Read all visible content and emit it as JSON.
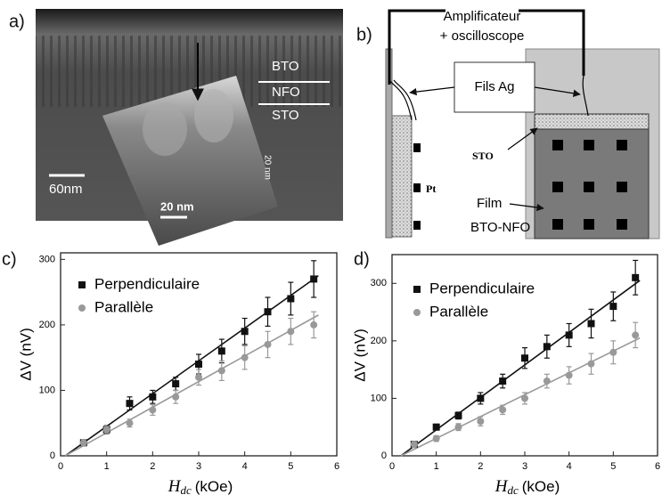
{
  "panels": {
    "a": {
      "label": "a)",
      "layers": [
        "BTO",
        "NFO",
        "STO"
      ],
      "scale_bar": "60nm",
      "inset_scale_bar": "20 nm",
      "inset_side_scale": "20 nm"
    },
    "b": {
      "label": "b)",
      "instrument": [
        "Amplificateur",
        "+ oscilloscope"
      ],
      "wires": "Fils Ag",
      "substrate": "STO",
      "electrode": "Pt",
      "film": [
        "Film",
        "BTO-NFO"
      ]
    }
  },
  "chart_data": [
    {
      "type": "scatter",
      "panel_label": "c)",
      "ylabel": "ΔV (nV)",
      "xlabel_symbol": "H",
      "xlabel_subscript": "dc",
      "xlabel_unit": "(kOe)",
      "xlim": [
        0,
        6
      ],
      "xticks": [
        0,
        1,
        2,
        3,
        4,
        5,
        6
      ],
      "ylim": [
        0,
        310
      ],
      "yticks": [
        0,
        100,
        200,
        300
      ],
      "series": [
        {
          "name": "Perpendiculaire",
          "color": "#111111",
          "marker": "square",
          "x": [
            0.5,
            1,
            1.5,
            2,
            2.5,
            3,
            3.5,
            4,
            4.5,
            5,
            5.5
          ],
          "values": [
            20,
            40,
            80,
            90,
            110,
            140,
            160,
            190,
            220,
            240,
            270
          ],
          "errors": [
            5,
            6,
            10,
            10,
            10,
            15,
            18,
            20,
            22,
            25,
            28
          ]
        },
        {
          "name": "Parallèle",
          "color": "#999999",
          "marker": "circle",
          "x": [
            0.5,
            1,
            1.5,
            2,
            2.5,
            3,
            3.5,
            4,
            4.5,
            5,
            5.5
          ],
          "values": [
            20,
            40,
            50,
            70,
            90,
            120,
            130,
            150,
            170,
            190,
            200
          ],
          "errors": [
            5,
            5,
            6,
            8,
            10,
            12,
            15,
            18,
            20,
            20,
            20
          ]
        }
      ],
      "fits": [
        {
          "color": "#111111",
          "x": [
            0.1,
            5.6
          ],
          "y": [
            0,
            275
          ]
        },
        {
          "color": "#999999",
          "x": [
            0.1,
            5.6
          ],
          "y": [
            0,
            215
          ]
        }
      ]
    },
    {
      "type": "scatter",
      "panel_label": "d)",
      "ylabel": "ΔV (nV)",
      "xlabel_symbol": "H",
      "xlabel_subscript": "dc",
      "xlabel_unit": "(kOe)",
      "xlim": [
        0,
        6
      ],
      "xticks": [
        0,
        1,
        2,
        3,
        4,
        5,
        6
      ],
      "ylim": [
        0,
        350
      ],
      "yticks": [
        0,
        100,
        200,
        300
      ],
      "series": [
        {
          "name": "Perpendiculaire",
          "color": "#111111",
          "marker": "square",
          "x": [
            0.5,
            1,
            1.5,
            2,
            2.5,
            3,
            3.5,
            4,
            4.5,
            5,
            5.5
          ],
          "values": [
            20,
            50,
            70,
            100,
            130,
            170,
            190,
            210,
            230,
            260,
            310
          ],
          "errors": [
            5,
            5,
            6,
            10,
            12,
            18,
            20,
            20,
            25,
            25,
            30
          ]
        },
        {
          "name": "Parallèle",
          "color": "#999999",
          "marker": "circle",
          "x": [
            0.5,
            1,
            1.5,
            2,
            2.5,
            3,
            3.5,
            4,
            4.5,
            5,
            5.5
          ],
          "values": [
            20,
            30,
            50,
            60,
            80,
            100,
            130,
            140,
            160,
            180,
            210
          ],
          "errors": [
            5,
            5,
            6,
            8,
            8,
            10,
            12,
            15,
            18,
            20,
            22
          ]
        }
      ],
      "fits": [
        {
          "color": "#111111",
          "x": [
            0.2,
            5.6
          ],
          "y": [
            0,
            305
          ]
        },
        {
          "color": "#999999",
          "x": [
            0.2,
            5.6
          ],
          "y": [
            0,
            205
          ]
        }
      ]
    }
  ]
}
